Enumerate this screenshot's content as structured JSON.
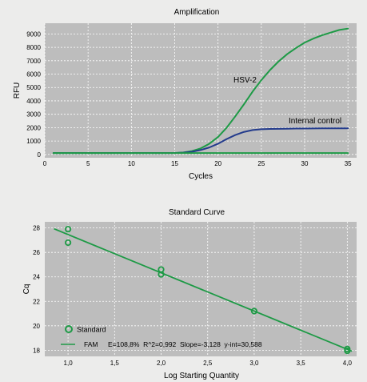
{
  "chart_data": [
    {
      "type": "line",
      "title": "Amplification",
      "xlabel": "Cycles",
      "ylabel": "RFU",
      "xlim": [
        0,
        36
      ],
      "ylim": [
        -250,
        9800
      ],
      "x_ticks": [
        0,
        5,
        10,
        15,
        20,
        25,
        30,
        35
      ],
      "y_ticks": [
        0,
        1000,
        2000,
        3000,
        4000,
        5000,
        6000,
        7000,
        8000,
        9000
      ],
      "grid": true,
      "series": [
        {
          "name": "HSV-2",
          "color": "#1e9a46",
          "x": [
            1,
            5,
            10,
            14,
            15,
            16,
            17,
            18,
            19,
            20,
            21,
            22,
            23,
            24,
            25,
            26,
            27,
            28,
            29,
            30,
            31,
            32,
            33,
            34,
            35
          ],
          "values": [
            100,
            100,
            100,
            100,
            110,
            150,
            250,
            450,
            800,
            1300,
            2000,
            2850,
            3750,
            4700,
            5550,
            6300,
            6950,
            7500,
            7950,
            8350,
            8650,
            8900,
            9100,
            9300,
            9400
          ]
        },
        {
          "name": "Internal control",
          "color": "#233b8c",
          "x": [
            1,
            5,
            10,
            14,
            15,
            16,
            17,
            18,
            19,
            20,
            21,
            22,
            23,
            24,
            25,
            26,
            27,
            28,
            29,
            30,
            31,
            32,
            33,
            34,
            35
          ],
          "values": [
            100,
            100,
            100,
            100,
            105,
            130,
            200,
            330,
            520,
            800,
            1150,
            1450,
            1680,
            1820,
            1880,
            1900,
            1910,
            1920,
            1930,
            1935,
            1940,
            1945,
            1950,
            1950,
            1950
          ]
        },
        {
          "name": "",
          "color": "#1e9a46",
          "x": [
            1,
            35
          ],
          "values": [
            100,
            100
          ]
        }
      ]
    },
    {
      "type": "scatter",
      "title": "Standard Curve",
      "xlabel": "Log Starting Quantity",
      "ylabel": "Cq",
      "xlim": [
        0.75,
        4.1
      ],
      "ylim": [
        17.5,
        28.5
      ],
      "x_ticks": [
        1.0,
        1.5,
        2.0,
        2.5,
        3.0,
        3.5,
        4.0
      ],
      "x_tick_labels": [
        "1,0",
        "1,5",
        "2,0",
        "2,5",
        "3,0",
        "3,5",
        "4,0"
      ],
      "y_ticks": [
        18,
        20,
        22,
        24,
        26,
        28
      ],
      "grid": true,
      "color": "#1e9a46",
      "points": {
        "name": "Standard",
        "x": [
          1.0,
          1.0,
          2.0,
          2.0,
          3.0,
          4.0,
          4.0
        ],
        "y": [
          27.9,
          26.8,
          24.6,
          24.2,
          21.2,
          18.1,
          17.95
        ]
      },
      "fit": {
        "name": "FAM",
        "slope": -3.128,
        "intercept": 30.588,
        "x_range": [
          0.85,
          4.05
        ]
      },
      "legend": {
        "position": "bottom-left",
        "standard_label": "Standard",
        "fit_label": "FAM",
        "fit_stats": "E=108,8%  R^2=0,992  Slope=-3,128  y-int=30,588"
      }
    }
  ]
}
